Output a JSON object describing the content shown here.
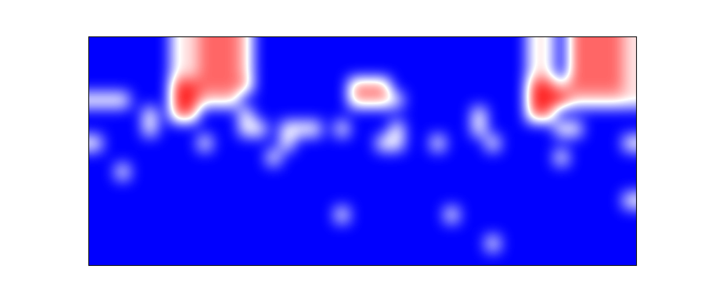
{
  "chart_data": {
    "type": "heatmap",
    "tick_labels": false,
    "color_range": [
      0,
      1
    ],
    "cells": [
      [
        0,
        0,
        0,
        0,
        0,
        0,
        0.55,
        0.55,
        0.8,
        0.8,
        0.8,
        0.6,
        0,
        0,
        0,
        0,
        0,
        0,
        0,
        0,
        0,
        0,
        0,
        0,
        0,
        0,
        0,
        0,
        0,
        0,
        0,
        0,
        0.55,
        0.55,
        0,
        0.8,
        0.8,
        0.8,
        0.8,
        0.55
      ],
      [
        0,
        0,
        0,
        0,
        0,
        0,
        0.55,
        0.55,
        0.8,
        0.8,
        0.8,
        0.6,
        0,
        0,
        0,
        0,
        0,
        0,
        0,
        0,
        0,
        0,
        0,
        0,
        0,
        0,
        0,
        0,
        0,
        0,
        0,
        0,
        0.55,
        0.55,
        0,
        0.8,
        0.8,
        0.8,
        0.8,
        0.55
      ],
      [
        0,
        0,
        0,
        0,
        0,
        0,
        0.55,
        0.55,
        0.8,
        0.8,
        0.8,
        0.6,
        0,
        0,
        0,
        0,
        0,
        0,
        0,
        0,
        0,
        0,
        0,
        0,
        0,
        0,
        0,
        0,
        0,
        0,
        0,
        0,
        0.55,
        0.55,
        0,
        0.8,
        0.8,
        0.8,
        0.8,
        0.55
      ],
      [
        0,
        0,
        0,
        0,
        0,
        0,
        0.9,
        0.9,
        0.8,
        0.8,
        0.8,
        0.7,
        0,
        0,
        0,
        0,
        0,
        0,
        0,
        0.75,
        0.75,
        0.75,
        0,
        0,
        0,
        0,
        0,
        0,
        0,
        0,
        0,
        0,
        0.9,
        0.9,
        0.6,
        0.8,
        0.8,
        0.8,
        0.8,
        0.55
      ],
      [
        0.55,
        0.55,
        0.55,
        0,
        0,
        0,
        0.95,
        0.95,
        0.6,
        0.6,
        0.6,
        0,
        0,
        0,
        0,
        0,
        0,
        0,
        0,
        0.7,
        0.7,
        0.7,
        0.5,
        0,
        0,
        0,
        0,
        0,
        0,
        0,
        0,
        0,
        0.95,
        0.95,
        0.95,
        0.6,
        0.6,
        0.6,
        0.6,
        0.55
      ],
      [
        0,
        0,
        0,
        0,
        0.55,
        0,
        0.8,
        0.8,
        0,
        0,
        0,
        0.55,
        0,
        0,
        0,
        0,
        0,
        0,
        0,
        0,
        0,
        0,
        0,
        0,
        0,
        0,
        0,
        0,
        0.55,
        0,
        0,
        0,
        0.8,
        0.8,
        0,
        0,
        0,
        0,
        0,
        0
      ],
      [
        0,
        0,
        0,
        0,
        0.55,
        0,
        0,
        0,
        0,
        0,
        0,
        0.55,
        0.55,
        0,
        0.55,
        0.55,
        0.55,
        0,
        0.55,
        0,
        0,
        0,
        0.55,
        0,
        0,
        0,
        0,
        0,
        0.55,
        0,
        0,
        0,
        0,
        0,
        0.55,
        0.55,
        0,
        0,
        0,
        0
      ],
      [
        0.55,
        0,
        0,
        0,
        0,
        0,
        0,
        0,
        0.55,
        0,
        0,
        0,
        0,
        0,
        0.55,
        0,
        0,
        0,
        0,
        0,
        0,
        0.55,
        0.55,
        0,
        0,
        0.55,
        0,
        0,
        0,
        0.55,
        0,
        0,
        0,
        0,
        0,
        0,
        0,
        0,
        0,
        0.55
      ],
      [
        0,
        0,
        0,
        0,
        0,
        0,
        0,
        0,
        0,
        0,
        0,
        0,
        0,
        0.55,
        0,
        0,
        0,
        0,
        0,
        0,
        0,
        0,
        0,
        0,
        0,
        0,
        0,
        0,
        0,
        0,
        0,
        0,
        0,
        0,
        0.55,
        0,
        0,
        0,
        0,
        0
      ],
      [
        0,
        0,
        0.55,
        0,
        0,
        0,
        0,
        0,
        0,
        0,
        0,
        0,
        0,
        0,
        0,
        0,
        0,
        0,
        0,
        0,
        0,
        0,
        0,
        0,
        0,
        0,
        0,
        0,
        0,
        0,
        0,
        0,
        0,
        0,
        0,
        0,
        0,
        0,
        0,
        0
      ],
      [
        0,
        0,
        0,
        0,
        0,
        0,
        0,
        0,
        0,
        0,
        0,
        0,
        0,
        0,
        0,
        0,
        0,
        0,
        0,
        0,
        0,
        0,
        0,
        0,
        0,
        0,
        0,
        0,
        0,
        0,
        0,
        0,
        0,
        0,
        0,
        0,
        0,
        0,
        0,
        0
      ],
      [
        0,
        0,
        0,
        0,
        0,
        0,
        0,
        0,
        0,
        0,
        0,
        0,
        0,
        0,
        0,
        0,
        0,
        0,
        0,
        0,
        0,
        0,
        0,
        0,
        0,
        0,
        0,
        0,
        0,
        0,
        0,
        0,
        0,
        0,
        0,
        0,
        0,
        0,
        0,
        0.55
      ],
      [
        0,
        0,
        0,
        0,
        0,
        0,
        0,
        0,
        0,
        0,
        0,
        0,
        0,
        0,
        0,
        0,
        0,
        0,
        0.55,
        0,
        0,
        0,
        0,
        0,
        0,
        0,
        0.55,
        0,
        0,
        0,
        0,
        0,
        0,
        0,
        0,
        0,
        0,
        0,
        0,
        0
      ],
      [
        0,
        0,
        0,
        0,
        0,
        0,
        0,
        0,
        0,
        0,
        0,
        0,
        0,
        0,
        0,
        0,
        0,
        0,
        0,
        0,
        0,
        0,
        0,
        0,
        0,
        0,
        0,
        0,
        0,
        0,
        0,
        0,
        0,
        0,
        0,
        0,
        0,
        0,
        0,
        0
      ],
      [
        0,
        0,
        0,
        0,
        0,
        0,
        0,
        0,
        0,
        0,
        0,
        0,
        0,
        0,
        0,
        0,
        0,
        0,
        0,
        0,
        0,
        0,
        0,
        0,
        0,
        0,
        0,
        0,
        0,
        0.55,
        0,
        0,
        0,
        0,
        0,
        0,
        0,
        0,
        0,
        0
      ],
      [
        0,
        0,
        0,
        0,
        0,
        0,
        0,
        0,
        0,
        0,
        0,
        0,
        0,
        0,
        0,
        0,
        0,
        0,
        0,
        0,
        0,
        0,
        0,
        0,
        0,
        0,
        0,
        0,
        0,
        0,
        0,
        0,
        0,
        0,
        0,
        0,
        0,
        0,
        0,
        0
      ]
    ]
  }
}
